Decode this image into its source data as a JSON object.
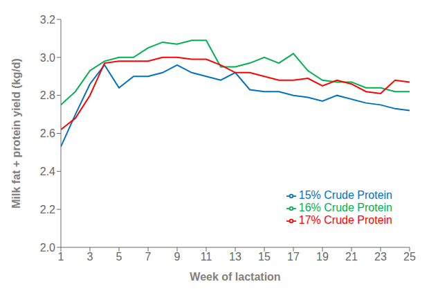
{
  "chart_data": {
    "type": "line",
    "xlabel": "Week of lactation",
    "ylabel": "Milk fat + protein yield (kg/d)",
    "x": [
      1,
      2,
      3,
      4,
      5,
      6,
      7,
      8,
      9,
      10,
      11,
      12,
      13,
      14,
      15,
      16,
      17,
      18,
      19,
      20,
      21,
      22,
      23,
      24,
      25
    ],
    "series": [
      {
        "name": "15% Crude Protein",
        "color": "#0070C0",
        "values": [
          2.53,
          2.7,
          2.86,
          2.96,
          2.84,
          2.9,
          2.9,
          2.92,
          2.96,
          2.92,
          2.9,
          2.88,
          2.92,
          2.83,
          2.82,
          2.82,
          2.8,
          2.79,
          2.77,
          2.8,
          2.78,
          2.76,
          2.75,
          2.73,
          2.72
        ]
      },
      {
        "name": "16% Crude Protein",
        "color": "#00B050",
        "values": [
          2.75,
          2.82,
          2.93,
          2.98,
          3.0,
          3.0,
          3.05,
          3.08,
          3.07,
          3.09,
          3.09,
          2.95,
          2.95,
          2.97,
          3.0,
          2.97,
          3.02,
          2.93,
          2.88,
          2.87,
          2.87,
          2.84,
          2.84,
          2.82,
          2.82
        ]
      },
      {
        "name": "17% Crude Protein",
        "color": "#FF0000",
        "values": [
          2.62,
          2.68,
          2.8,
          2.97,
          2.98,
          2.98,
          2.98,
          3.0,
          3.0,
          2.99,
          2.99,
          2.96,
          2.92,
          2.92,
          2.9,
          2.88,
          2.88,
          2.89,
          2.85,
          2.88,
          2.86,
          2.82,
          2.81,
          2.88,
          2.87
        ]
      }
    ],
    "xlim": [
      1,
      25
    ],
    "xticks": [
      1,
      3,
      5,
      7,
      9,
      11,
      13,
      15,
      17,
      19,
      21,
      23,
      25
    ],
    "ylim": [
      2.0,
      3.2
    ],
    "yticks": [
      {
        "value": 2.0,
        "label": "2.0"
      },
      2.2,
      2.4,
      2.6,
      2.8,
      {
        "value": 3.0,
        "label": "3.0"
      },
      3.2
    ],
    "grid": false,
    "legend": "lower right"
  }
}
